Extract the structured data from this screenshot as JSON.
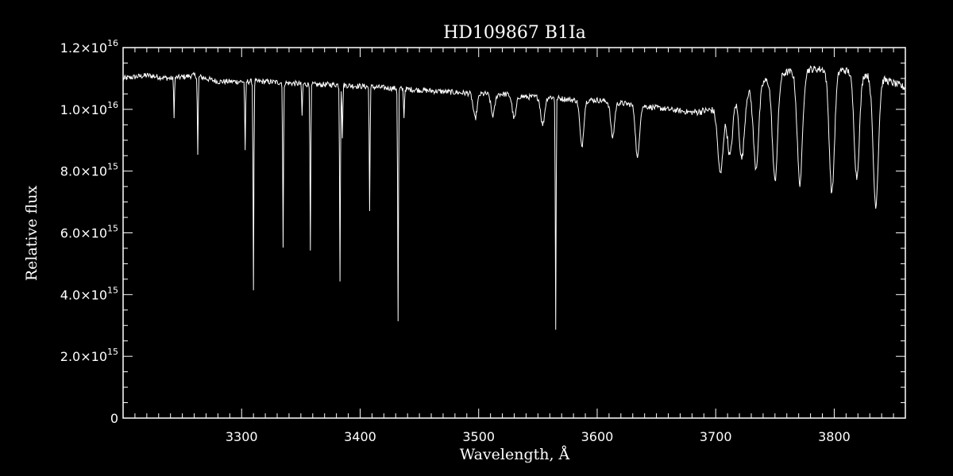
{
  "chart_data": {
    "type": "line",
    "title": "HD109867   B1Ia",
    "xlabel": "Wavelength, Å",
    "ylabel": "Relative flux",
    "xlim": [
      3200,
      3860
    ],
    "ylim": [
      0,
      1.2e+16
    ],
    "grid": false,
    "x_ticks": [
      {
        "value": 3300,
        "label": "3300"
      },
      {
        "value": 3400,
        "label": "3400"
      },
      {
        "value": 3500,
        "label": "3500"
      },
      {
        "value": 3600,
        "label": "3600"
      },
      {
        "value": 3700,
        "label": "3700"
      },
      {
        "value": 3800,
        "label": "3800"
      }
    ],
    "y_ticks": [
      {
        "value": 0,
        "mant": "0",
        "exp": ""
      },
      {
        "value": 2000000000000000.0,
        "mant": "2.0×10",
        "exp": "15"
      },
      {
        "value": 4000000000000000.0,
        "mant": "4.0×10",
        "exp": "15"
      },
      {
        "value": 6000000000000000.0,
        "mant": "6.0×10",
        "exp": "15"
      },
      {
        "value": 8000000000000000.0,
        "mant": "8.0×10",
        "exp": "15"
      },
      {
        "value": 1e+16,
        "mant": "1.0×10",
        "exp": "16"
      },
      {
        "value": 1.2e+16,
        "mant": "1.2×10",
        "exp": "16"
      }
    ],
    "series": [
      {
        "color": "#ffffff",
        "continuum": [
          [
            3200,
            1.1e+16
          ],
          [
            3220,
            1.11e+16
          ],
          [
            3240,
            1.1e+16
          ],
          [
            3260,
            1.11e+16
          ],
          [
            3280,
            1.09e+16
          ],
          [
            3300,
            1.09e+16
          ],
          [
            3320,
            1.09e+16
          ],
          [
            3340,
            1.085e+16
          ],
          [
            3360,
            1.08e+16
          ],
          [
            3380,
            1.08e+16
          ],
          [
            3400,
            1.075e+16
          ],
          [
            3420,
            1.07e+16
          ],
          [
            3440,
            1.065e+16
          ],
          [
            3460,
            1.06e+16
          ],
          [
            3480,
            1.055e+16
          ],
          [
            3500,
            1.05e+16
          ],
          [
            3520,
            1.05e+16
          ],
          [
            3540,
            1.04e+16
          ],
          [
            3560,
            1.04e+16
          ],
          [
            3580,
            1.03e+16
          ],
          [
            3600,
            1.03e+16
          ],
          [
            3620,
            1.02e+16
          ],
          [
            3640,
            1.01e+16
          ],
          [
            3660,
            1e+16
          ],
          [
            3680,
            9900000000000000.0
          ],
          [
            3700,
            1e+16
          ],
          [
            3720,
            1.05e+16
          ],
          [
            3740,
            1.09e+16
          ],
          [
            3760,
            1.12e+16
          ],
          [
            3780,
            1.13e+16
          ],
          [
            3800,
            1.13e+16
          ],
          [
            3820,
            1.12e+16
          ],
          [
            3840,
            1.1e+16
          ],
          [
            3860,
            1.07e+16
          ]
        ],
        "absorption_lines": [
          {
            "x": 3243,
            "min": 9800000000000000.0
          },
          {
            "x": 3263,
            "min": 8500000000000000.0
          },
          {
            "x": 3303,
            "min": 8600000000000000.0
          },
          {
            "x": 3310,
            "min": 4200000000000000.0
          },
          {
            "x": 3335,
            "min": 5500000000000000.0
          },
          {
            "x": 3351,
            "min": 9800000000000000.0
          },
          {
            "x": 3358,
            "min": 5500000000000000.0
          },
          {
            "x": 3383,
            "min": 4500000000000000.0
          },
          {
            "x": 3385,
            "min": 9000000000000000.0
          },
          {
            "x": 3408,
            "min": 6700000000000000.0
          },
          {
            "x": 3432,
            "min": 3100000000000000.0
          },
          {
            "x": 3437,
            "min": 9700000000000000.0
          },
          {
            "x": 3565,
            "min": 2900000000000000.0
          }
        ],
        "broad_features": [
          {
            "x": 3497,
            "min": 9700000000000000.0
          },
          {
            "x": 3512,
            "min": 9800000000000000.0
          },
          {
            "x": 3530,
            "min": 9700000000000000.0
          },
          {
            "x": 3554,
            "min": 9500000000000000.0
          },
          {
            "x": 3587,
            "min": 8800000000000000.0
          },
          {
            "x": 3613,
            "min": 9100000000000000.0
          },
          {
            "x": 3634,
            "min": 8400000000000000.0
          },
          {
            "x": 3704,
            "min": 7900000000000000.0
          },
          {
            "x": 3712,
            "min": 8500000000000000.0
          },
          {
            "x": 3722,
            "min": 8400000000000000.0
          },
          {
            "x": 3734,
            "min": 8100000000000000.0
          },
          {
            "x": 3750,
            "min": 7700000000000000.0
          },
          {
            "x": 3771,
            "min": 7600000000000000.0
          },
          {
            "x": 3798,
            "min": 7300000000000000.0
          },
          {
            "x": 3819,
            "min": 7800000000000000.0
          },
          {
            "x": 3835,
            "min": 6900000000000000.0
          }
        ]
      }
    ]
  }
}
